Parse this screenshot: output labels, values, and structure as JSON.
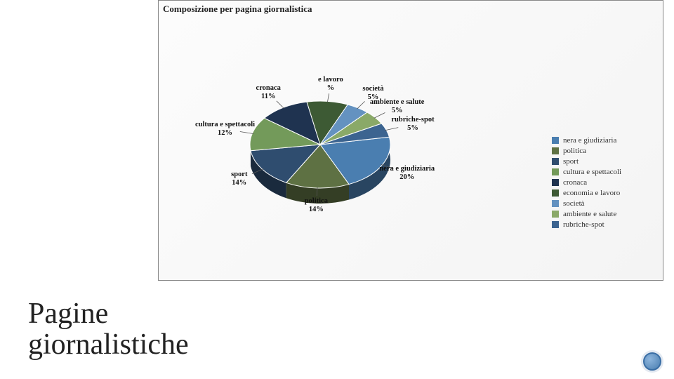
{
  "chart": {
    "type": "pie",
    "title": "Composizione per pagina giornalistica",
    "background_gradient": [
      "#fcfcfc",
      "#f4f4f4"
    ],
    "label_fontsize": 10.5,
    "label_fontweight": "bold",
    "start_angle_deg": 350,
    "slices": [
      {
        "key": "nera",
        "label": "nera e giudiziaria",
        "pct_text": "20%",
        "value": 20,
        "color": "#4a7eb0"
      },
      {
        "key": "politica",
        "label": "politica",
        "pct_text": "14%",
        "value": 14,
        "color": "#5e7143"
      },
      {
        "key": "sport",
        "label": "sport",
        "pct_text": "14%",
        "value": 14,
        "color": "#2f4d6f"
      },
      {
        "key": "cultura",
        "label": "cultura e spettacoli",
        "pct_text": "12%",
        "value": 12,
        "color": "#739a5a"
      },
      {
        "key": "cronaca",
        "label": "cronaca",
        "pct_text": "11%",
        "value": 11,
        "color": "#1f3350"
      },
      {
        "key": "economia",
        "label": "e lavoro",
        "pct_text": "%",
        "value": 9,
        "color": "#3d5a34"
      },
      {
        "key": "societa",
        "label": "società",
        "pct_text": "5%",
        "value": 5,
        "color": "#6492c0"
      },
      {
        "key": "ambiente",
        "label": "ambiente e salute",
        "pct_text": "5%",
        "value": 5,
        "color": "#8aa968"
      },
      {
        "key": "rubriche",
        "label": "rubriche-spot",
        "pct_text": "5%",
        "value": 5,
        "color": "#3c6490"
      }
    ],
    "legend": {
      "position": "right",
      "fontsize": 11,
      "items": [
        {
          "label": "nera e giudiziaria",
          "color": "#4a7eb0"
        },
        {
          "label": "politica",
          "color": "#5e7143"
        },
        {
          "label": "sport",
          "color": "#2f4d6f"
        },
        {
          "label": "cultura e spettacoli",
          "color": "#739a5a"
        },
        {
          "label": "cronaca",
          "color": "#1f3350"
        },
        {
          "label": "economia e lavoro",
          "color": "#3d5a34"
        },
        {
          "label": "società",
          "color": "#6492c0"
        },
        {
          "label": "ambiente e salute",
          "color": "#8aa968"
        },
        {
          "label": "rubriche-spot",
          "color": "#3c6490"
        }
      ]
    }
  },
  "heading": {
    "line1": "Pagine",
    "line2": "giornalistiche"
  },
  "pagenum_color": "#4a7eb0"
}
